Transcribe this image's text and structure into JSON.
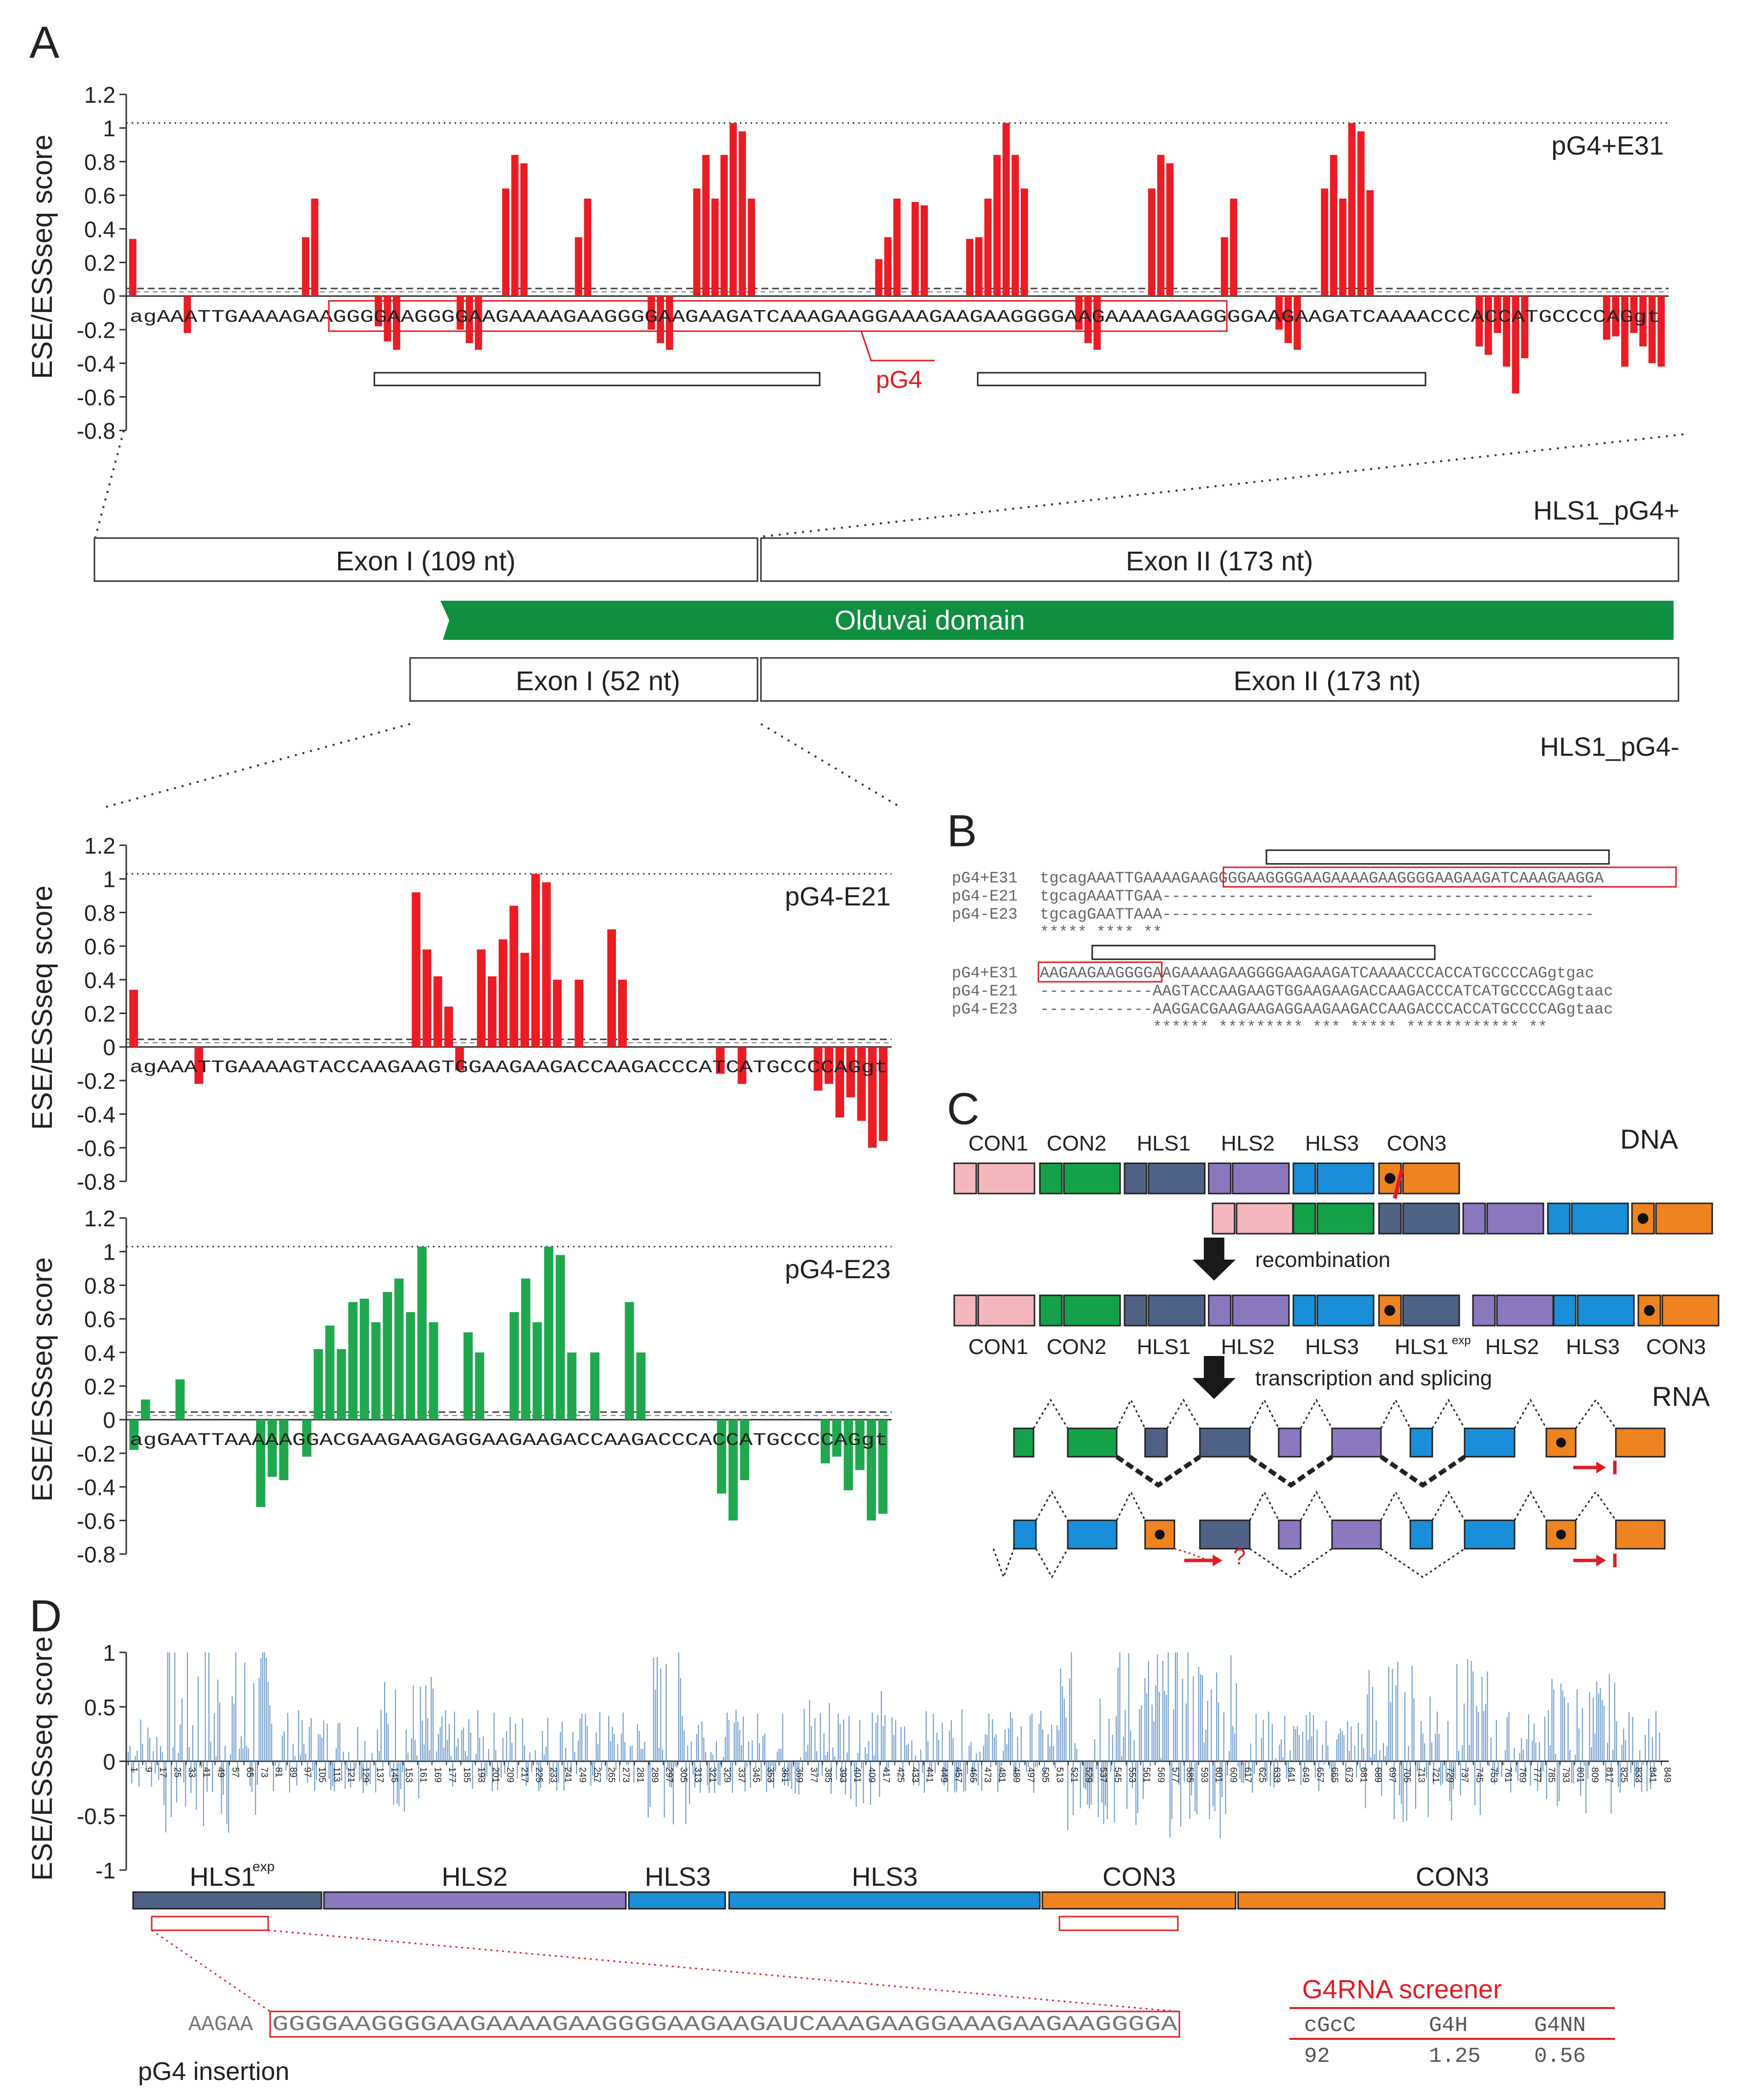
{
  "panel_letters": {
    "a": "A",
    "b": "B",
    "c": "C",
    "d": "D"
  },
  "panel_a": {
    "ylabel": "ESE/ESSseq score",
    "ticks": [
      "1.2",
      "1",
      "0.8",
      "0.6",
      "0.4",
      "0.2",
      "0",
      "-0.2",
      "-0.4",
      "-0.6",
      "-0.8"
    ],
    "label": "pG4+E31",
    "sequence": "agAAATTGAAAAGAAGGGGAAGGGGAAGAAAAGAAGGGGAAGAAGATCAAAGAAGGAAAGAAGAAGGGGAAGAAAAGAAGGGGAAGAAGATCAAAACCCACCATGCCCCAGgt",
    "pg4_label": "pG4"
  },
  "chart_data": [
    {
      "type": "bar",
      "name": "pG4+E31",
      "ylim": [
        -0.8,
        1.2
      ],
      "values": [
        0.34,
        0,
        0,
        0,
        0,
        0,
        -0.22,
        0,
        0,
        0,
        0,
        0,
        0,
        0,
        0,
        0,
        0,
        0,
        0,
        0.35,
        0.58,
        0,
        0,
        0,
        0,
        0,
        0,
        -0.18,
        -0.27,
        -0.32,
        0,
        0,
        0,
        0,
        0,
        0,
        -0.2,
        -0.28,
        -0.32,
        0,
        0,
        0.64,
        0.84,
        0.79,
        0,
        0,
        0,
        0,
        0,
        0.35,
        0.58,
        0,
        0,
        0,
        0,
        0,
        0,
        -0.2,
        -0.28,
        -0.32,
        0,
        0,
        0.64,
        0.84,
        0.58,
        0.84,
        1.03,
        0.98,
        0.58,
        0,
        0,
        0,
        0,
        0,
        0,
        0,
        0,
        0,
        0,
        0,
        0,
        0,
        0.22,
        0.35,
        0.58,
        0,
        0.56,
        0.54,
        0,
        0,
        0,
        0,
        0.34,
        0.35,
        0.58,
        0.84,
        1.03,
        0.84,
        0.64,
        0,
        0,
        0,
        0,
        0,
        -0.2,
        -0.28,
        -0.32,
        0,
        0,
        0,
        0,
        0,
        0.64,
        0.84,
        0.79,
        0,
        0,
        0,
        0,
        0,
        0.35,
        0.58,
        0,
        0,
        0,
        0,
        -0.2,
        -0.28,
        -0.32,
        0,
        0,
        0.64,
        0.84,
        0.58,
        1.03,
        0.98,
        0.63,
        0,
        0,
        0,
        0,
        0,
        0,
        0,
        0,
        0,
        0,
        0,
        -0.3,
        -0.35,
        -0.22,
        -0.42,
        -0.58,
        -0.37,
        0,
        0,
        0,
        0,
        0,
        0,
        0,
        0,
        -0.26,
        -0.24,
        -0.42,
        -0.22,
        -0.3,
        -0.4,
        -0.42
      ]
    },
    {
      "type": "bar",
      "name": "pG4-E21",
      "ylim": [
        -0.8,
        1.2
      ],
      "values": [
        0.34,
        0,
        0,
        0,
        0,
        0,
        -0.22,
        0,
        0,
        0,
        0,
        0,
        0,
        0,
        0,
        0,
        0,
        0,
        0,
        0,
        0,
        0,
        0,
        0,
        0,
        0,
        0.92,
        0.58,
        0.42,
        0.24,
        -0.14,
        0,
        0.58,
        0.42,
        0.64,
        0.84,
        0.56,
        1.03,
        0.98,
        0.4,
        0,
        0.4,
        0,
        0,
        0.7,
        0.4,
        0,
        0,
        0,
        0,
        0,
        0,
        0,
        0,
        -0.16,
        0,
        -0.22,
        0,
        0,
        0,
        0,
        0,
        0,
        -0.26,
        -0.22,
        -0.42,
        -0.3,
        -0.44,
        -0.6,
        -0.56
      ]
    },
    {
      "type": "bar",
      "name": "pG4-E23",
      "ylim": [
        -0.8,
        1.2
      ],
      "values": [
        -0.18,
        0.12,
        0,
        0,
        0.24,
        0,
        0,
        0,
        0,
        0,
        0,
        -0.52,
        -0.34,
        -0.36,
        0,
        -0.22,
        0.42,
        0.56,
        0.42,
        0.7,
        0.72,
        0.58,
        0.76,
        0.84,
        0.64,
        1.03,
        0.58,
        0,
        0,
        0.52,
        0.4,
        0,
        0,
        0.64,
        0.84,
        0.58,
        1.03,
        0.98,
        0.4,
        0,
        0.4,
        0,
        0,
        0.7,
        0.4,
        0,
        0,
        0,
        0,
        0,
        0,
        -0.44,
        -0.6,
        -0.36,
        0,
        0,
        0,
        0,
        0,
        0,
        -0.26,
        -0.22,
        -0.42,
        -0.3,
        -0.6,
        -0.56
      ]
    }
  ],
  "middle": {
    "hls_pg4_plus": "HLS1_pG4+",
    "hls_pg4_minus": "HLS1_pG4-",
    "exon1_109": "Exon I (109 nt)",
    "exon2_top": "Exon II (173 nt)",
    "olduvai": "Olduvai domain",
    "exon1_52": "Exon I (52 nt)",
    "exon2_bottom": "Exon II (173 nt)",
    "olduvai_color": "#0f8f3f"
  },
  "panel_e21": {
    "label": "pG4-E21",
    "sequence": "agAAATTGAAAAGTACCAAGAAGTGGAAGAAGACCAAGACCCATCATGCCCCAGgt"
  },
  "panel_e23": {
    "label": "pG4-E23",
    "sequence": "agGAATTAAAAAGGACGAAGAAGAGGAAGAAGACCAAGACCCACCATGCCCCAGgt"
  },
  "panel_b": {
    "block1": [
      {
        "name": "pG4+E31",
        "seq": "tgcagAAATTGAAAAGAAGGGGAAGGGGAAGAAAAGAAGGGGAAGAAGATCAAAGAAGGA"
      },
      {
        "name": "pG4-E21",
        "seq": "tgcagAAATTGAA----------------------------------------------"
      },
      {
        "name": "pG4-E23",
        "seq": "tgcagGAATTAAA----------------------------------------------"
      },
      {
        "name": "",
        "seq": "***** **** **"
      }
    ],
    "block2": [
      {
        "name": "pG4+E31",
        "seq": "AAGAAGAAGGGGAAGAAAAGAAGGGGAAGAAGATCAAAACCCACCATGCCCCAGgtgac"
      },
      {
        "name": "pG4-E21",
        "seq": "------------AAGTACCAAGAAGTGGAAGAAGACCAAGACCCATCATGCCCCAGgtaac"
      },
      {
        "name": "pG4-E23",
        "seq": "------------AAGGACGAAGAAGAGGAAGAAGACCAAGACCCACCATGCCCCAGgtaac"
      },
      {
        "name": "",
        "seq": "            ****** ********* *** ***** ************ **"
      }
    ]
  },
  "panel_c": {
    "dna": "DNA",
    "rna": "RNA",
    "recombination": "recombination",
    "transcription": "transcription and splicing",
    "top_labels": [
      "CON1",
      "CON2",
      "HLS1",
      "HLS2",
      "HLS3",
      "CON3"
    ],
    "bottom_labels": [
      "CON1",
      "CON2",
      "HLS1",
      "HLS2",
      "HLS3",
      "HLS1",
      "HLS2",
      "HLS3",
      "CON3"
    ],
    "exp": "exp",
    "question": "?",
    "colors": {
      "con1": "#f4b6bd",
      "con2": "#15a04a",
      "hls1": "#4f6185",
      "hls2": "#8b78bf",
      "hls3": "#1a8ed8",
      "con3": "#ef8320"
    }
  },
  "panel_d": {
    "ylabel": "ESE/ESSseq score",
    "ticks": [
      "1",
      "0.5",
      "0",
      "-0.5",
      "-1"
    ],
    "ylim": [
      -1,
      1
    ],
    "xticks": [
      "1",
      "9",
      "17",
      "25",
      "33",
      "41",
      "49",
      "57",
      "65",
      "73",
      "81",
      "89",
      "97",
      "105",
      "113",
      "121",
      "129",
      "137",
      "145",
      "153",
      "161",
      "169",
      "177",
      "185",
      "193",
      "201",
      "209",
      "217",
      "225",
      "233",
      "241",
      "249",
      "257",
      "265",
      "273",
      "281",
      "289",
      "297",
      "305",
      "313",
      "321",
      "329",
      "337",
      "345",
      "353",
      "361",
      "369",
      "377",
      "385",
      "393",
      "401",
      "409",
      "417",
      "425",
      "433",
      "441",
      "449",
      "457",
      "465",
      "473",
      "481",
      "489",
      "497",
      "505",
      "513",
      "521",
      "529",
      "537",
      "545",
      "553",
      "561",
      "569",
      "577",
      "585",
      "593",
      "601",
      "609",
      "617",
      "625",
      "633",
      "641",
      "649",
      "657",
      "665",
      "673",
      "681",
      "689",
      "697",
      "705",
      "713",
      "721",
      "729",
      "737",
      "745",
      "753",
      "761",
      "769",
      "777",
      "785",
      "793",
      "801",
      "809",
      "817",
      "825",
      "833",
      "841",
      "849"
    ],
    "segments": [
      "HLS1",
      "HLS2",
      "HLS3",
      "HLS3",
      "CON3",
      "CON3"
    ],
    "exp": "exp",
    "insertion_flank": "AAGAA",
    "insertion_seq": "GGGGAAGGGGAAGAAAAGAAGGGGAAGAAGAUCAAAGAAGGAAAGAAGAAGGGGA",
    "insertion_label": "pG4 insertion",
    "screener": {
      "title": "G4RNA screener",
      "headers": [
        "cGcC",
        "G4H",
        "G4NN"
      ],
      "values": [
        "92",
        "1.25",
        "0.56"
      ]
    }
  }
}
